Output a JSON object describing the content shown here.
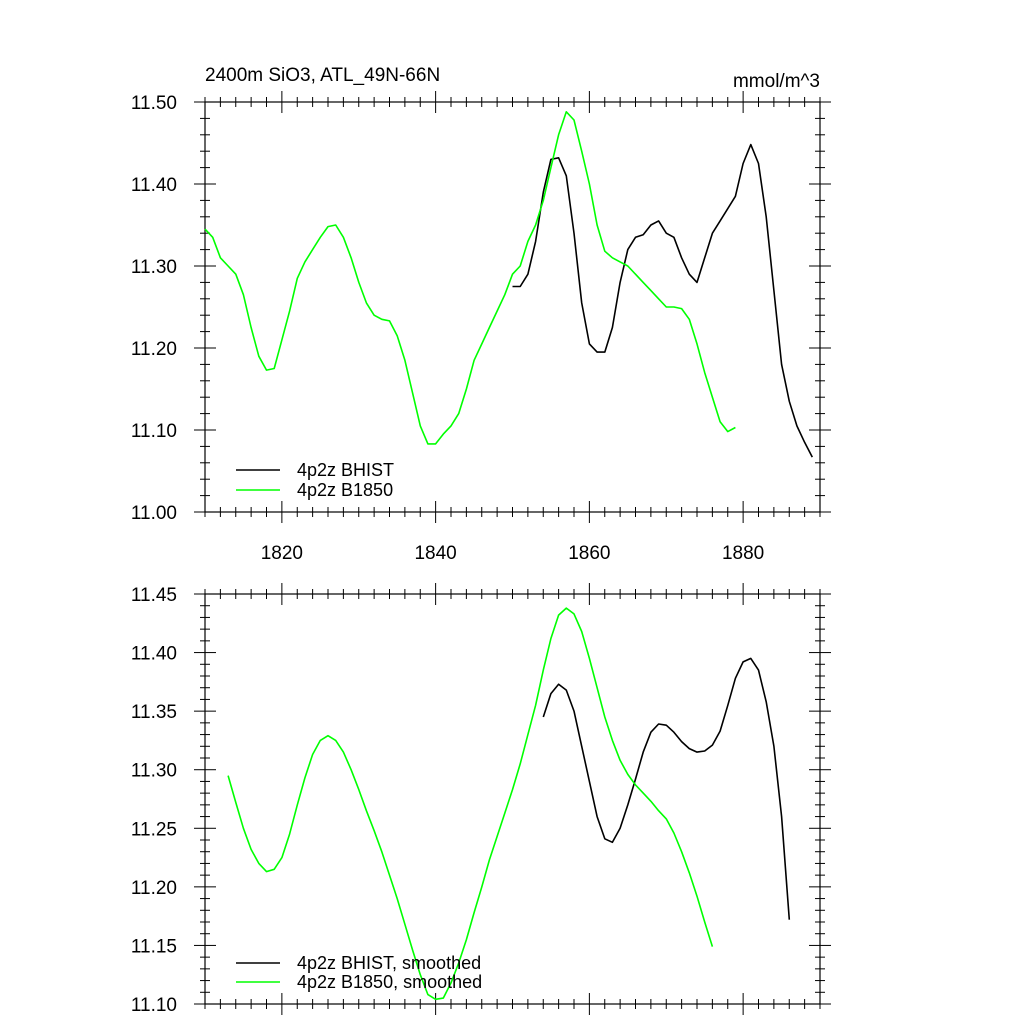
{
  "chart_data": [
    {
      "type": "line",
      "title": "2400m SiO3, ATL_49N-66N",
      "units": "mmol/m^3",
      "xlabel": "",
      "ylabel": "",
      "xlim": [
        1810,
        1890
      ],
      "ylim": [
        11.0,
        11.5
      ],
      "x_ticks": [
        1820,
        1840,
        1860,
        1880
      ],
      "x_tick_labels": [
        "1820",
        "1840",
        "1860",
        "1880"
      ],
      "y_ticks": [
        11.0,
        11.1,
        11.2,
        11.3,
        11.4,
        11.5
      ],
      "y_tick_labels": [
        "11.00",
        "11.10",
        "11.20",
        "11.30",
        "11.40",
        "11.50"
      ],
      "grid": false,
      "legend_position": "bottom-left",
      "series": [
        {
          "name": "4p2z BHIST",
          "color": "#000000",
          "x": [
            1850,
            1851,
            1852,
            1853,
            1854,
            1855,
            1856,
            1857,
            1858,
            1859,
            1860,
            1861,
            1862,
            1863,
            1864,
            1865,
            1866,
            1867,
            1868,
            1869,
            1870,
            1871,
            1872,
            1873,
            1874,
            1875,
            1876,
            1877,
            1878,
            1879,
            1880,
            1881,
            1882,
            1883,
            1884,
            1885,
            1886,
            1887,
            1888,
            1889
          ],
          "y": [
            11.275,
            11.275,
            11.29,
            11.33,
            11.39,
            11.43,
            11.432,
            11.41,
            11.34,
            11.255,
            11.205,
            11.195,
            11.195,
            11.225,
            11.28,
            11.32,
            11.335,
            11.338,
            11.35,
            11.355,
            11.34,
            11.335,
            11.31,
            11.29,
            11.28,
            11.31,
            11.34,
            11.355,
            11.37,
            11.385,
            11.425,
            11.448,
            11.425,
            11.36,
            11.27,
            11.18,
            11.135,
            11.105,
            11.085,
            11.067
          ]
        },
        {
          "name": "4p2z B1850",
          "color": "#00ff00",
          "x": [
            1810,
            1811,
            1812,
            1813,
            1814,
            1815,
            1816,
            1817,
            1818,
            1819,
            1820,
            1821,
            1822,
            1823,
            1824,
            1825,
            1826,
            1827,
            1828,
            1829,
            1830,
            1831,
            1832,
            1833,
            1834,
            1835,
            1836,
            1837,
            1838,
            1839,
            1840,
            1841,
            1842,
            1843,
            1844,
            1845,
            1846,
            1847,
            1848,
            1849,
            1850,
            1851,
            1852,
            1853,
            1854,
            1855,
            1856,
            1857,
            1858,
            1859,
            1860,
            1861,
            1862,
            1863,
            1864,
            1865,
            1866,
            1867,
            1868,
            1869,
            1870,
            1871,
            1872,
            1873,
            1874,
            1875,
            1876,
            1877,
            1878,
            1879
          ],
          "y": [
            11.345,
            11.335,
            11.31,
            11.3,
            11.29,
            11.265,
            11.225,
            11.19,
            11.173,
            11.175,
            11.21,
            11.245,
            11.285,
            11.305,
            11.32,
            11.335,
            11.348,
            11.35,
            11.335,
            11.31,
            11.28,
            11.255,
            11.24,
            11.235,
            11.233,
            11.215,
            11.185,
            11.145,
            11.105,
            11.083,
            11.083,
            11.095,
            11.105,
            11.12,
            11.15,
            11.185,
            11.205,
            11.225,
            11.245,
            11.265,
            11.29,
            11.3,
            11.33,
            11.35,
            11.38,
            11.42,
            11.46,
            11.488,
            11.478,
            11.44,
            11.4,
            11.35,
            11.318,
            11.31,
            11.305,
            11.3,
            11.29,
            11.28,
            11.27,
            11.26,
            11.25,
            11.25,
            11.248,
            11.235,
            11.205,
            11.17,
            11.14,
            11.11,
            11.098,
            11.103
          ]
        }
      ]
    },
    {
      "type": "line",
      "title": "",
      "xlabel": "",
      "ylabel": "",
      "xlim": [
        1810,
        1890
      ],
      "ylim": [
        11.1,
        11.45
      ],
      "x_ticks": [
        1820,
        1840,
        1860,
        1880
      ],
      "x_tick_labels": [],
      "y_ticks": [
        11.1,
        11.15,
        11.2,
        11.25,
        11.3,
        11.35,
        11.4,
        11.45
      ],
      "y_tick_labels": [
        "11.10",
        "11.15",
        "11.20",
        "11.25",
        "11.30",
        "11.35",
        "11.40",
        "11.45"
      ],
      "grid": false,
      "legend_position": "bottom-left",
      "series": [
        {
          "name": "4p2z BHIST, smoothed",
          "color": "#000000",
          "x": [
            1854,
            1855,
            1856,
            1857,
            1858,
            1859,
            1860,
            1861,
            1862,
            1863,
            1864,
            1865,
            1866,
            1867,
            1868,
            1869,
            1870,
            1871,
            1872,
            1873,
            1874,
            1875,
            1876,
            1877,
            1878,
            1879,
            1880,
            1881,
            1882,
            1883,
            1884,
            1885,
            1886
          ],
          "y": [
            11.345,
            11.365,
            11.373,
            11.368,
            11.35,
            11.32,
            11.29,
            11.26,
            11.241,
            11.238,
            11.25,
            11.27,
            11.292,
            11.315,
            11.332,
            11.339,
            11.338,
            11.332,
            11.324,
            11.318,
            11.315,
            11.316,
            11.321,
            11.333,
            11.355,
            11.378,
            11.392,
            11.395,
            11.385,
            11.358,
            11.32,
            11.26,
            11.172
          ]
        },
        {
          "name": "4p2z B1850, smoothed",
          "color": "#00ff00",
          "x": [
            1813,
            1814,
            1815,
            1816,
            1817,
            1818,
            1819,
            1820,
            1821,
            1822,
            1823,
            1824,
            1825,
            1826,
            1827,
            1828,
            1829,
            1830,
            1831,
            1832,
            1833,
            1834,
            1835,
            1836,
            1837,
            1838,
            1839,
            1840,
            1841,
            1842,
            1843,
            1844,
            1845,
            1846,
            1847,
            1848,
            1849,
            1850,
            1851,
            1852,
            1853,
            1854,
            1855,
            1856,
            1857,
            1858,
            1859,
            1860,
            1861,
            1862,
            1863,
            1864,
            1865,
            1866,
            1867,
            1868,
            1869,
            1870,
            1871,
            1872,
            1873,
            1874,
            1875,
            1876
          ],
          "y": [
            11.295,
            11.272,
            11.25,
            11.232,
            11.22,
            11.213,
            11.215,
            11.225,
            11.245,
            11.27,
            11.293,
            11.313,
            11.325,
            11.329,
            11.325,
            11.315,
            11.3,
            11.283,
            11.265,
            11.248,
            11.23,
            11.21,
            11.19,
            11.168,
            11.146,
            11.125,
            11.108,
            11.104,
            11.105,
            11.118,
            11.135,
            11.155,
            11.178,
            11.2,
            11.223,
            11.243,
            11.263,
            11.283,
            11.305,
            11.33,
            11.355,
            11.385,
            11.412,
            11.432,
            11.438,
            11.433,
            11.418,
            11.395,
            11.37,
            11.345,
            11.325,
            11.308,
            11.296,
            11.287,
            11.28,
            11.273,
            11.265,
            11.258,
            11.246,
            11.23,
            11.212,
            11.192,
            11.17,
            11.149
          ]
        }
      ]
    }
  ]
}
